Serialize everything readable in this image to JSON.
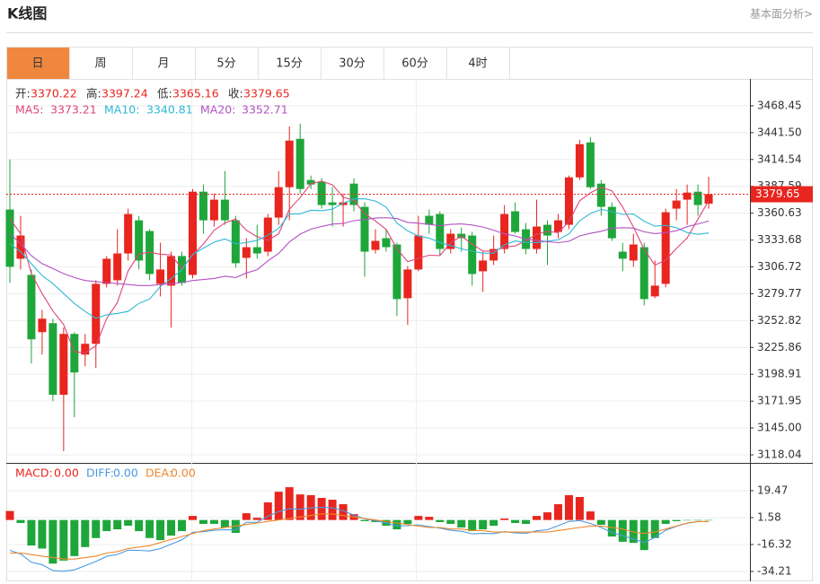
{
  "header": {
    "title": "K线图",
    "link": "基本面分析>"
  },
  "tabs": {
    "items": [
      "日",
      "周",
      "月",
      "5分",
      "15分",
      "30分",
      "60分",
      "4时"
    ],
    "active": 0,
    "active_color": "#f0873f"
  },
  "chart_data": [
    {
      "type": "candlestick",
      "up_color": "#e8251e",
      "down_color": "#1ea63a",
      "open": [
        3364.3,
        3314.9,
        3298.7,
        3241.2,
        3250.2,
        3178.3,
        3239.4,
        3218.7,
        3229.5,
        3289.7,
        3293.3,
        3320.2,
        3353.5,
        3342.7,
        3289.7,
        3287.9,
        3317.6,
        3298.7,
        3382.2,
        3353.5,
        3374.2,
        3353.5,
        3315.8,
        3326.5,
        3322.0,
        3356.2,
        3386.7,
        3435.3,
        3393.9,
        3392.1,
        3371.5,
        3368.8,
        3390.3,
        3367.0,
        3323.8,
        3335.5,
        3329.2,
        3275.3,
        3304.1,
        3358.0,
        3359.8,
        3324.7,
        3340.0,
        3338.2,
        3302.3,
        3313.1,
        3324.7,
        3362.5,
        3344.5,
        3324.7,
        3349.0,
        3341.8,
        3349.0,
        3396.6,
        3431.7,
        3390.3,
        3367.0,
        3322.0,
        3313.1,
        3326.5,
        3277.1,
        3289.7,
        3365.2,
        3374.2,
        3382.2,
        3370.22
      ],
      "high": [
        3414.6,
        3358.0,
        3304.1,
        3263.6,
        3254.7,
        3245.7,
        3241.2,
        3239.4,
        3293.3,
        3317.6,
        3344.5,
        3365.2,
        3358.0,
        3344.5,
        3331.0,
        3322.0,
        3322.0,
        3384.9,
        3389.4,
        3380.4,
        3402.9,
        3358.0,
        3335.5,
        3349.0,
        3359.8,
        3402.9,
        3447.8,
        3450.5,
        3398.4,
        3395.7,
        3386.7,
        3380.4,
        3395.7,
        3371.5,
        3344.5,
        3344.5,
        3331.0,
        3307.7,
        3358.0,
        3364.3,
        3362.5,
        3344.5,
        3346.3,
        3341.8,
        3322.0,
        3338.2,
        3368.8,
        3371.5,
        3350.8,
        3374.2,
        3353.5,
        3359.8,
        3398.4,
        3434.4,
        3437.1,
        3393.9,
        3371.5,
        3331.0,
        3340.0,
        3331.0,
        3313.1,
        3365.2,
        3384.9,
        3389.4,
        3389.4,
        3397.24
      ],
      "low": [
        3290.6,
        3304.1,
        3209.7,
        3218.7,
        3172.0,
        3121.7,
        3155.8,
        3207.0,
        3205.2,
        3286.1,
        3287.9,
        3313.1,
        3304.1,
        3293.3,
        3277.1,
        3245.7,
        3287.9,
        3295.1,
        3340.0,
        3347.2,
        3349.0,
        3305.9,
        3295.1,
        3314.9,
        3317.6,
        3349.0,
        3353.5,
        3380.4,
        3384.9,
        3365.2,
        3347.2,
        3347.2,
        3362.5,
        3296.9,
        3320.2,
        3322.0,
        3257.4,
        3248.4,
        3302.3,
        3340.0,
        3317.6,
        3320.2,
        3322.0,
        3287.9,
        3281.6,
        3308.6,
        3320.2,
        3340.0,
        3319.3,
        3320.2,
        3308.6,
        3335.5,
        3344.5,
        3393.9,
        3384.9,
        3358.0,
        3332.8,
        3302.3,
        3306.8,
        3268.1,
        3275.3,
        3286.1,
        3353.5,
        3349.0,
        3358.0,
        3365.16
      ],
      "close": [
        3306.8,
        3338.2,
        3234.0,
        3254.7,
        3178.3,
        3239.4,
        3200.7,
        3229.5,
        3289.7,
        3314.9,
        3320.2,
        3359.8,
        3313.1,
        3299.6,
        3304.1,
        3317.6,
        3290.6,
        3382.2,
        3353.5,
        3374.2,
        3353.5,
        3310.4,
        3326.5,
        3320.2,
        3356.2,
        3386.7,
        3433.5,
        3384.9,
        3389.4,
        3368.8,
        3368.8,
        3371.5,
        3368.8,
        3322.0,
        3332.8,
        3326.5,
        3274.4,
        3304.1,
        3338.2,
        3349.0,
        3324.7,
        3340.0,
        3335.5,
        3299.6,
        3313.1,
        3324.7,
        3359.8,
        3341.8,
        3324.7,
        3347.2,
        3338.2,
        3353.5,
        3396.6,
        3429.9,
        3386.7,
        3367.0,
        3335.5,
        3314.9,
        3329.2,
        3274.4,
        3287.9,
        3361.6,
        3373.3,
        3381.3,
        3368.8,
        3379.65
      ],
      "ohlc_labels": {
        "open": "开:",
        "high": "高:",
        "low": "低:",
        "close": "收:"
      },
      "series": [
        {
          "name": "MA5:",
          "color": "#e0457b",
          "values": [
            3355,
            3340,
            3300,
            3280,
            3262.4,
            3248.9,
            3221.4,
            3220.5,
            3227.5,
            3254.8,
            3271.0,
            3302.8,
            3319.5,
            3321.5,
            3319.4,
            3318.8,
            3305.0,
            3318.8,
            3329.6,
            3343.6,
            3350.8,
            3354.8,
            3343.6,
            3337.0,
            3333.4,
            3340.0,
            3364.6,
            3376.3,
            3390.1,
            3392.7,
            3389.1,
            3376.7,
            3373.5,
            3360.0,
            3352.8,
            3344.3,
            3324.9,
            3312.0,
            3315.2,
            3318.4,
            3318.1,
            3331.2,
            3337.5,
            3329.8,
            3322.6,
            3322.6,
            3326.5,
            3327.8,
            3332.8,
            3339.6,
            3342.3,
            3341.1,
            3352.0,
            3373.1,
            3381.0,
            3386.7,
            3383.1,
            3366.8,
            3346.7,
            3324.2,
            3308.4,
            3313.6,
            3325.3,
            3335.7,
            3354.6,
            3373.21
          ]
        },
        {
          "name": "MA10:",
          "color": "#2fb8d6",
          "values": [
            3330,
            3322,
            3310,
            3298,
            3290,
            3280,
            3270,
            3262,
            3255,
            3258.6,
            3260.0,
            3262.1,
            3270.0,
            3274.5,
            3287.1,
            3294.9,
            3303.9,
            3319.2,
            3325.6,
            3331.5,
            3334.8,
            3329.9,
            3331.2,
            3333.3,
            3338.5,
            3345.4,
            3359.7,
            3360.0,
            3363.6,
            3363.1,
            3364.6,
            3370.7,
            3374.9,
            3375.1,
            3372.8,
            3366.7,
            3350.8,
            3342.8,
            3337.6,
            3335.6,
            3331.2,
            3328.1,
            3324.8,
            3322.5,
            3320.5,
            3320.4,
            3328.9,
            3332.7,
            3331.3,
            3331.1,
            3332.5,
            3333.8,
            3339.9,
            3353.0,
            3360.3,
            3364.5,
            3362.1,
            3359.4,
            3359.9,
            3352.6,
            3347.6,
            3348.4,
            3346.1,
            3341.2,
            3339.4,
            3340.81
          ]
        },
        {
          "name": "MA20:",
          "color": "#b352c4",
          "values": [
            3340,
            3330,
            3318,
            3310,
            3305,
            3300,
            3296,
            3293,
            3292,
            3291,
            3290,
            3289,
            3288,
            3288,
            3289,
            3290,
            3291,
            3293,
            3294,
            3295.1,
            3297.4,
            3296.0,
            3300.6,
            3303.9,
            3312.8,
            3320.2,
            3331.8,
            3339.6,
            3344.6,
            3347.3,
            3349.7,
            3350.3,
            3353.1,
            3354.2,
            3355.7,
            3356.1,
            3355.3,
            3351.4,
            3350.6,
            3349.4,
            3347.9,
            3349.4,
            3349.9,
            3348.8,
            3346.7,
            3343.6,
            3339.9,
            3337.8,
            3334.5,
            3333.4,
            3331.9,
            3331.0,
            3332.4,
            3337.8,
            3340.4,
            3342.5,
            3345.5,
            3346.1,
            3345.6,
            3341.9,
            3340.1,
            3341.1,
            3343.0,
            3347.1,
            3349.9,
            3352.71
          ]
        }
      ],
      "ylim": [
        3110.85,
        3494.5
      ],
      "yticks": [
        3468.45,
        {
          "value": 3441.5,
          "label": "3441.50"
        },
        3414.54,
        3387.59,
        3360.63,
        3333.68,
        3306.72,
        3279.77,
        3252.82,
        3225.86,
        3198.91,
        3171.95,
        {
          "value": 3145,
          "label": "3145.00"
        },
        3118.04
      ],
      "grid": true,
      "last_price_line": true
    },
    {
      "type": "macd",
      "up_color": "#e8251e",
      "down_color": "#1ea63a",
      "values": [
        6,
        -2,
        -17,
        -19,
        -29,
        -27,
        -24,
        -18,
        -12,
        -7.4,
        -6.2,
        -3.8,
        -7.4,
        -12,
        -13.4,
        -10.4,
        -7.4,
        2.7,
        -2.6,
        -2.6,
        -5,
        -8.6,
        4.5,
        1.5,
        11.7,
        18.8,
        21.8,
        17,
        16.5,
        14.7,
        13.5,
        10.5,
        3.9,
        -0.8,
        -1.4,
        -3.8,
        -6.2,
        -2.6,
        2.7,
        2.1,
        -1.4,
        -2.6,
        -5,
        -7.4,
        -6.2,
        -3.8,
        1,
        -2,
        -2.6,
        2.7,
        5.1,
        10.5,
        16.5,
        15.3,
        5.7,
        -3.2,
        -11,
        -14.5,
        -15.2,
        -20,
        -12,
        -2.6,
        -0.8,
        -0.3,
        -0.3,
        -0.3
      ],
      "series": [
        {
          "color": "#4a9ae0",
          "values": [
            -20.2,
            -22.6,
            -28.1,
            -29.7,
            -33.7,
            -34.1,
            -33.2,
            -30.4,
            -27.6,
            -24.2,
            -22.9,
            -20.1,
            -20.2,
            -20.6,
            -19.0,
            -16.1,
            -13.2,
            -8.2,
            -7.8,
            -6.8,
            -6.5,
            -6.6,
            -1.6,
            -1.5,
            2.5,
            5.6,
            7.5,
            7.1,
            8.0,
            8.4,
            8.1,
            6.2,
            3.2,
            0.8,
            -0.4,
            -2.1,
            -3.9,
            -3.8,
            -3.2,
            -4.4,
            -5.4,
            -6.8,
            -7.5,
            -9.2,
            -8.9,
            -9.1,
            -7.7,
            -8.6,
            -8.8,
            -7.2,
            -6.5,
            -3.8,
            -1.0,
            -0.4,
            -2.3,
            -5.0,
            -8.3,
            -10.4,
            -12.6,
            -15.0,
            -11.6,
            -6.8,
            -4.2,
            -2.1,
            -1.1,
            -1.1
          ]
        },
        {
          "color": "#f0872a",
          "values": [
            -22,
            -22,
            -23,
            -24,
            -25,
            -26,
            -26,
            -25,
            -24,
            -22,
            -21,
            -19,
            -18,
            -17,
            -15,
            -13,
            -11,
            -9,
            -7,
            -6,
            -5,
            -4,
            -3,
            -2,
            -1,
            0,
            1,
            2,
            3,
            4,
            4,
            3,
            2,
            1,
            0,
            -1,
            -2,
            -3,
            -4,
            -5,
            -5,
            -6,
            -6,
            -7,
            -7,
            -8,
            -8,
            -8,
            -8,
            -8,
            -8,
            -7,
            -6,
            -5,
            -4,
            -4,
            -5,
            -6,
            -8,
            -9,
            -8,
            -6,
            -4,
            -2,
            -1,
            -1
          ]
        }
      ],
      "legend": [
        {
          "name": "MACD:",
          "value": 0,
          "label": "0.00",
          "color": "#e8251e"
        },
        {
          "name": "DIFF:",
          "value": 0,
          "label": "0.00",
          "color": "#4a9ae0"
        },
        {
          "name": "DEA:",
          "value": 0,
          "label": "0.00",
          "color": "#f0872a"
        }
      ],
      "ylim": [
        -40.77,
        37.37
      ],
      "yticks": [
        19.47,
        1.58,
        -16.32,
        -34.21
      ],
      "grid": true
    }
  ]
}
